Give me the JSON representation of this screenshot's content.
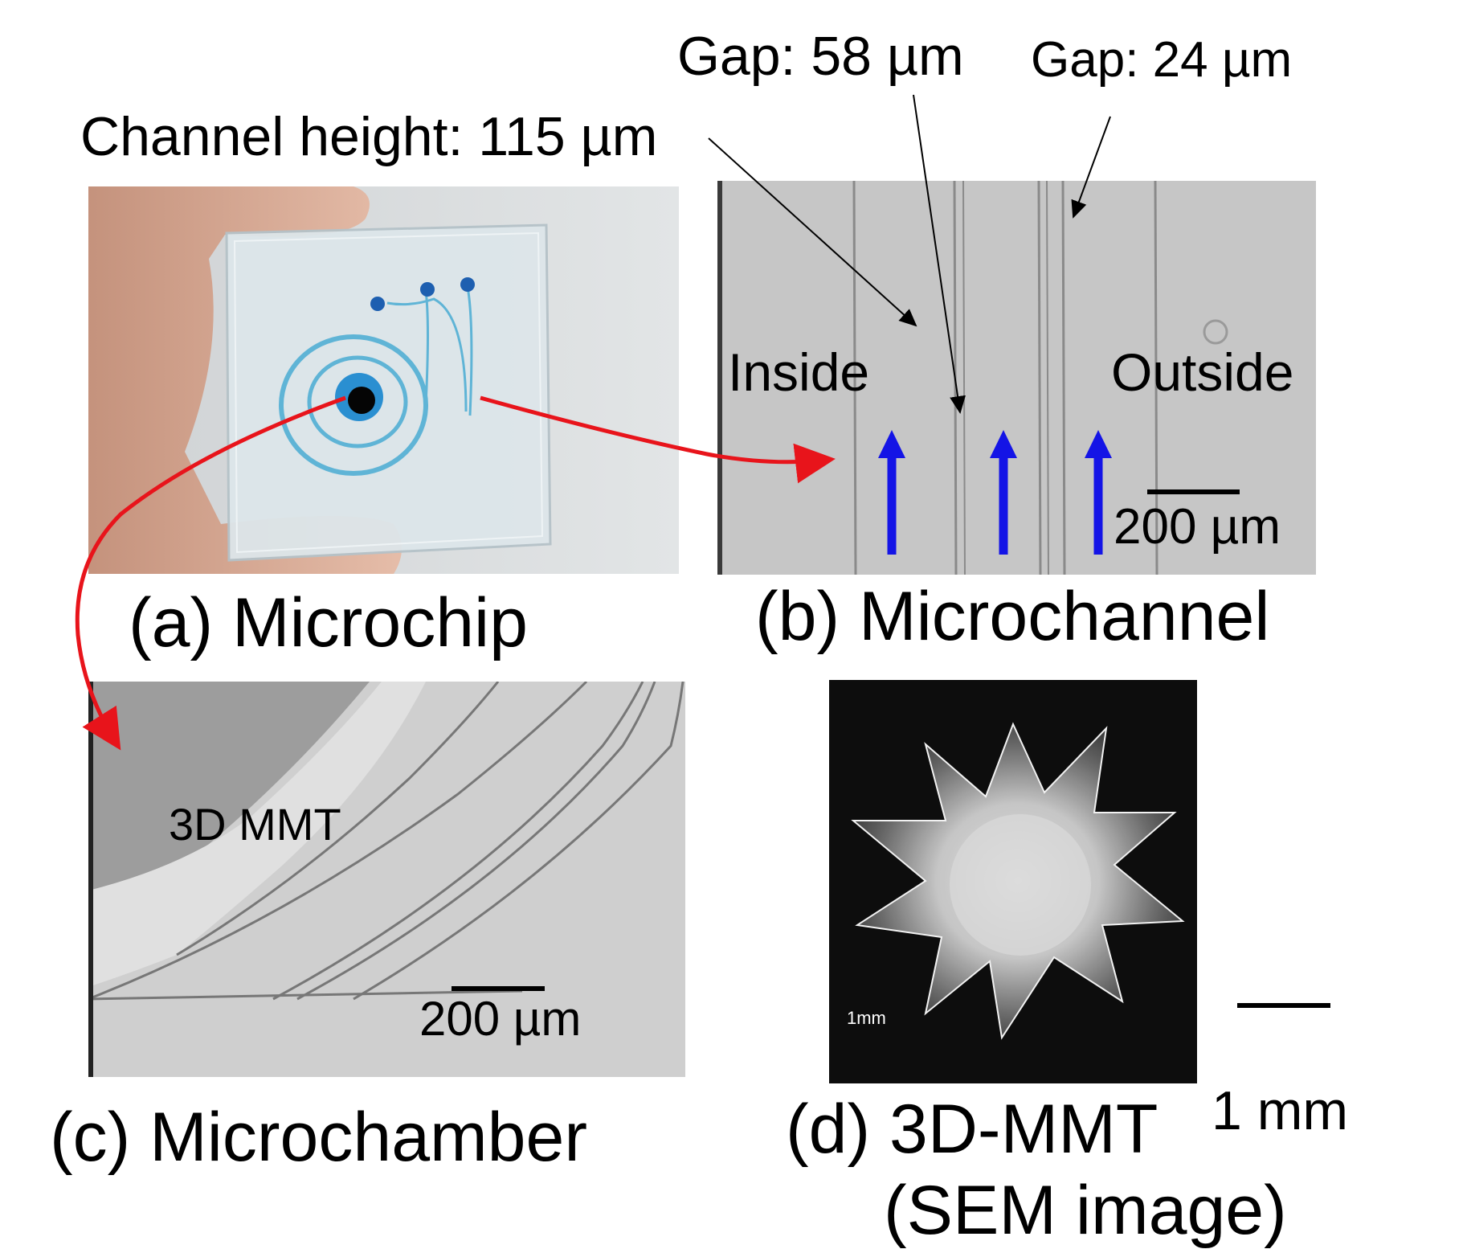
{
  "annotations": {
    "channel_height": "Channel height: 115 µm",
    "gap_58": "Gap: 58 µm",
    "gap_24": "Gap: 24 µm"
  },
  "panel_a": {
    "caption": "(a) Microchip"
  },
  "panel_b": {
    "caption": "(b) Microchannel",
    "inside_label": "Inside",
    "outside_label": "Outside",
    "scale_label": "200 µm"
  },
  "panel_c": {
    "caption": "(c) Microchamber",
    "device_label": "3D MMT",
    "scale_label": "200 µm"
  },
  "panel_d": {
    "caption_line1": "(d) 3D-MMT",
    "caption_line2": "(SEM image)",
    "inset_scale_label": "1mm",
    "scale_label": "1 mm"
  },
  "colors": {
    "arrow_red": "#e8141b",
    "flow_arrow_blue": "#1414e6",
    "channel_dye": "#5fb4d6",
    "panel_gray": "#c8c8c8",
    "sem_background": "#0d0d0d"
  }
}
